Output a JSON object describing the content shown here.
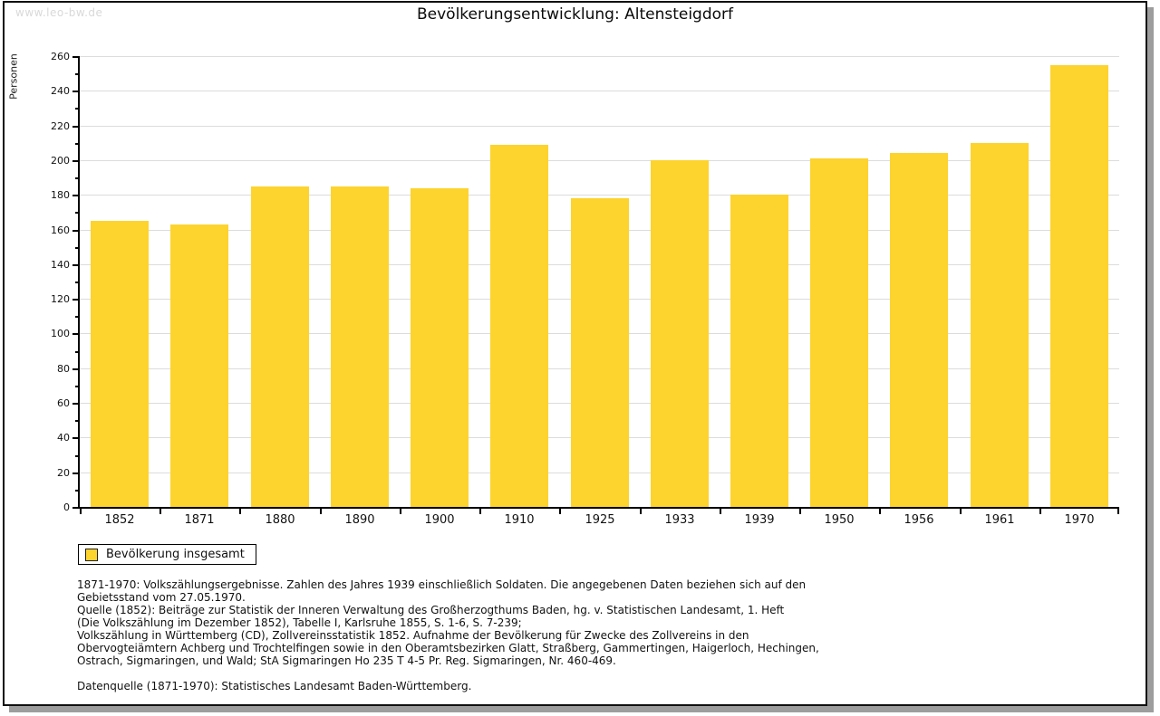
{
  "watermark": "www.leo-bw.de",
  "title": "Bevölkerungsentwicklung: Altensteigdorf",
  "colors": {
    "bar": "#fdd32e",
    "grid": "#dcdcdc",
    "axis": "#000000",
    "watermark": "#d9d9d9",
    "frame_shadow": "#9d9d9d"
  },
  "chart_data": {
    "type": "bar",
    "title": "Bevölkerungsentwicklung: Altensteigdorf",
    "xlabel": "",
    "ylabel": "Personen",
    "categories": [
      "1852",
      "1871",
      "1880",
      "1890",
      "1900",
      "1910",
      "1925",
      "1933",
      "1939",
      "1950",
      "1956",
      "1961",
      "1970"
    ],
    "values": [
      165,
      163,
      185,
      185,
      184,
      209,
      178,
      200,
      180,
      201,
      204,
      210,
      255
    ],
    "series_name": "Bevölkerung insgesamt",
    "ylim": [
      0,
      260
    ],
    "ytick_step": 20,
    "yminor_step": 10,
    "grid": true,
    "legend_position": "bottom-left"
  },
  "legend": {
    "label": "Bevölkerung insgesamt"
  },
  "footer": {
    "lines": [
      "1871-1970: Volkszählungsergebnisse. Zahlen des Jahres 1939 einschließlich Soldaten. Die angegebenen Daten beziehen sich auf den",
      "Gebietsstand vom 27.05.1970.",
      "Quelle (1852): Beiträge zur Statistik der Inneren Verwaltung des Großherzogthums Baden, hg. v. Statistischen Landesamt, 1. Heft",
      "(Die Volkszählung im Dezember 1852), Tabelle I, Karlsruhe 1855, S. 1-6, S. 7-239;",
      "Volkszählung in Württemberg (CD), Zollvereinsstatistik 1852. Aufnahme der Bevölkerung für Zwecke des Zollvereins in den",
      "Obervogteiämtern Achberg und Trochtelfingen sowie in den Oberamtsbezirken Glatt, Straßberg, Gammertingen, Haigerloch, Hechingen,",
      "Ostrach, Sigmaringen, und Wald; StA Sigmaringen Ho 235 T 4-5 Pr. Reg. Sigmaringen, Nr. 460-469."
    ],
    "datasource": "Datenquelle (1871-1970): Statistisches Landesamt Baden-Württemberg."
  }
}
